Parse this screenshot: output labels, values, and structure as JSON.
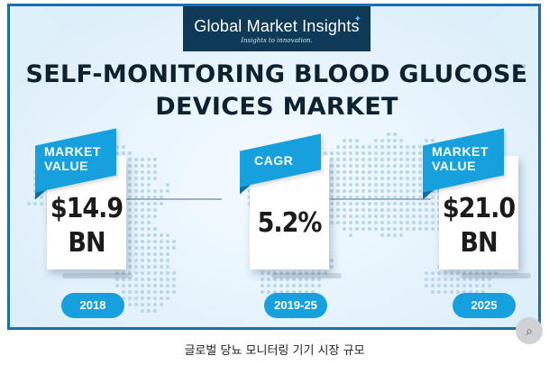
{
  "logo": {
    "name": "Global Market Insights",
    "tagline": "Insights to innovation."
  },
  "title": {
    "line1": "SELF-MONITORING BLOOD GLUCOSE",
    "line2": "DEVICES MARKET"
  },
  "cards": [
    {
      "label_line1": "MARKET",
      "label_line2": "VALUE",
      "value_line1": "$14.9",
      "value_line2": "BN",
      "year": "2018"
    },
    {
      "label_line1": "CAGR",
      "label_line2": "",
      "value_line1": "5.2%",
      "value_line2": "",
      "year": "2019-25"
    },
    {
      "label_line1": "MARKET",
      "label_line2": "VALUE",
      "value_line1": "$21.0",
      "value_line2": "BN",
      "year": "2025"
    }
  ],
  "caption": "글로벌 당뇨 모니터링 기기 시장 규모",
  "colors": {
    "accent": "#16a0dd",
    "logo_bg": "#0f3a57",
    "frame_border": "#1a6fb0",
    "title_text": "#0d2230"
  },
  "icons": {
    "corner": "image-search-icon"
  }
}
